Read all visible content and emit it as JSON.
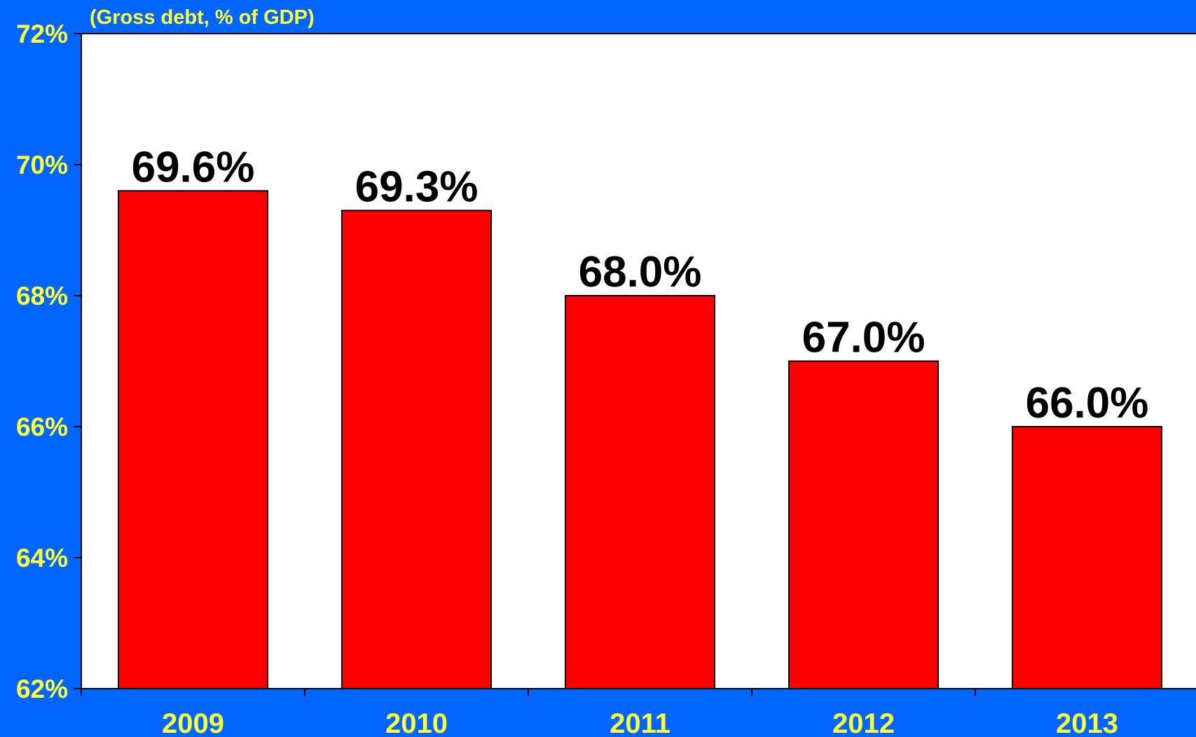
{
  "chart_data": {
    "type": "bar",
    "subtitle": "(Gross debt, % of GDP)",
    "categories": [
      "2009",
      "2010",
      "2011",
      "2012",
      "2013"
    ],
    "values": [
      69.6,
      69.3,
      68.0,
      67.0,
      66.0
    ],
    "data_labels": [
      "69.6%",
      "69.3%",
      "68.0%",
      "67.0%",
      "66.0%"
    ],
    "ylim": [
      62,
      72
    ],
    "yticks": [
      62,
      64,
      66,
      68,
      70,
      72
    ],
    "ytick_labels": [
      "62%",
      "64%",
      "66%",
      "68%",
      "70%",
      "72%"
    ],
    "grid": false,
    "legend": "none",
    "colors": {
      "background": "#0066ff",
      "plot_area": "#ffffff",
      "bar": "#ff0000",
      "tick_label": "#ffff33",
      "data_label": "#000000"
    }
  }
}
